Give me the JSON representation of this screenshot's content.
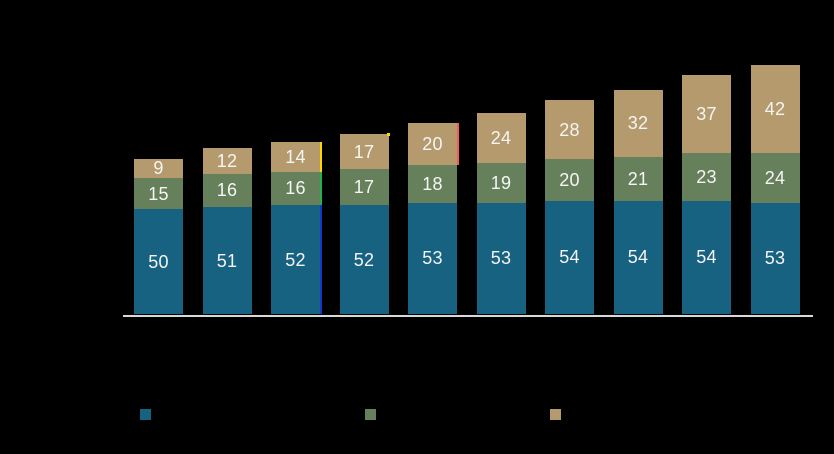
{
  "chart_data": {
    "type": "bar",
    "stacked": true,
    "orientation": "vertical",
    "background_color": "#000000",
    "bar_count": 10,
    "series": [
      {
        "name": "blue",
        "color": "#176181",
        "values": [
          50,
          51,
          52,
          52,
          53,
          53,
          54,
          54,
          54,
          53
        ]
      },
      {
        "name": "green",
        "color": "#66805b",
        "values": [
          15,
          16,
          16,
          17,
          18,
          19,
          20,
          21,
          23,
          24
        ]
      },
      {
        "name": "tan",
        "color": "#b49a6d",
        "values": [
          9,
          12,
          14,
          17,
          20,
          24,
          28,
          32,
          37,
          42
        ]
      }
    ],
    "data_labels": {
      "visible": true,
      "color": "#f5f5f5"
    },
    "x_axis": {
      "line_color": "#d9d9d9",
      "tick_labels_visible": false
    },
    "y_axis": {
      "visible": false
    },
    "legend": {
      "position": "bottom",
      "labels_visible": false,
      "swatches": [
        {
          "series": "blue",
          "color": "#176181"
        },
        {
          "series": "green",
          "color": "#66805b"
        },
        {
          "series": "tan",
          "color": "#b49a6d"
        }
      ]
    },
    "edge_highlights": [
      {
        "bar_index": 2,
        "type": "stripes",
        "stripes": [
          {
            "segment": "tan",
            "color": "#ffd400"
          },
          {
            "segment": "green",
            "color": "#22b14c"
          },
          {
            "segment": "blue",
            "color": "#1437cc"
          }
        ]
      },
      {
        "bar_index": 3,
        "type": "dot",
        "color": "#ffd400"
      },
      {
        "bar_index": 4,
        "type": "stripes",
        "stripes": [
          {
            "segment": "tan",
            "color": "#f25c5c"
          }
        ]
      }
    ]
  }
}
